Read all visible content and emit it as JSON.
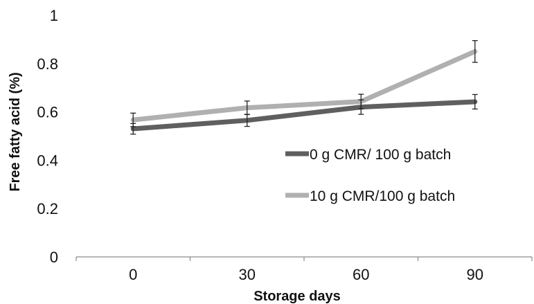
{
  "chart_data": {
    "type": "line",
    "title": "",
    "xlabel": "Storage days",
    "ylabel": "Free fatty acid (%)",
    "x": [
      "0",
      "30",
      "60",
      "90"
    ],
    "ylim": [
      0,
      1
    ],
    "yticks": [
      "0",
      "0.2",
      "0.4",
      "0.6",
      "0.8",
      "1"
    ],
    "grid": false,
    "legend_position": "right",
    "series": [
      {
        "name": "0 g CMR/ 100 g batch",
        "color": "#5f5f5f",
        "values": [
          0.53,
          0.565,
          0.62,
          0.642
        ],
        "errors": [
          0.022,
          0.025,
          0.03,
          0.03
        ]
      },
      {
        "name": "10 g CMR/100 g batch",
        "color": "#b0b0b0",
        "values": [
          0.567,
          0.617,
          0.643,
          0.85
        ],
        "errors": [
          0.028,
          0.028,
          0.03,
          0.045
        ]
      }
    ]
  }
}
